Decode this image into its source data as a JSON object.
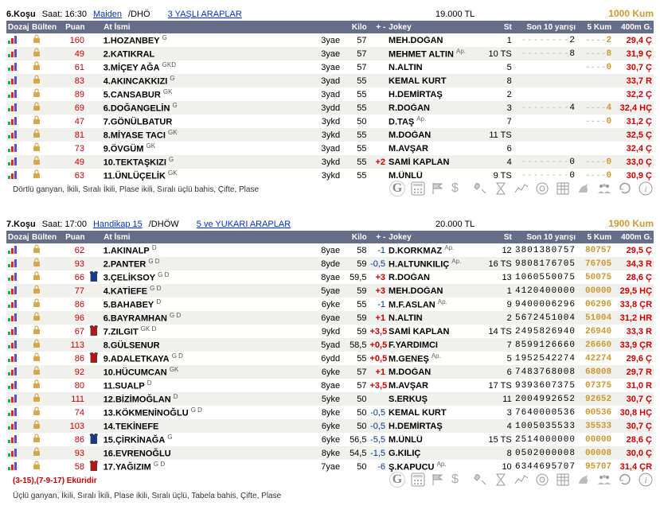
{
  "races": [
    {
      "no": "6.Koşu",
      "time": "Saat: 16:30",
      "type": "Maiden",
      "cond": "/DHÖ",
      "age": "3 YAŞLI ARAPLAR",
      "prize": "19.000 TL",
      "dist": "1000 Kum",
      "footer_red": "",
      "footer_txt": "Dörtlü ganyan, İkili, Sıralı İkili, Plase ikili, Sıralı üçlü bahis, Çifte, Plase",
      "headers": [
        "Dozaj",
        "Bülten",
        "Puan",
        "",
        "At İsmi",
        "",
        "Kilo",
        "+ -",
        "Jokey",
        "St",
        "Son 10 yarışı",
        "5 Kum",
        "400m G."
      ],
      "rows": [
        {
          "puan": "160",
          "no": "1",
          "name": "HOZANBEY",
          "sup": "G",
          "yas": "3yae",
          "kilo": "57",
          "pm": "",
          "jok": "MEH.DOĞAN",
          "ap": "",
          "st": "1",
          "form": "--------2",
          "k5": "----2",
          "t": "29,4 Ç",
          "tc": "#cc0000",
          "silk": ""
        },
        {
          "puan": "49",
          "no": "2",
          "name": "KATIKRAL",
          "sup": "",
          "yas": "3yae",
          "kilo": "57",
          "pm": "",
          "jok": "MEHMET ALTIN",
          "ap": "Ap.",
          "st": "10 TS",
          "form": "--------8",
          "k5": "----8",
          "t": "31,9 Ç",
          "tc": "#cc0000",
          "silk": ""
        },
        {
          "puan": "61",
          "no": "3",
          "name": "MİÇEY AĞA",
          "sup": "GKD",
          "yas": "3yae",
          "kilo": "57",
          "pm": "",
          "jok": "N.ALTIN",
          "ap": "",
          "st": "5",
          "form": "",
          "k5": "----0",
          "t": "30,7 Ç",
          "tc": "#cc0000",
          "silk": ""
        },
        {
          "puan": "83",
          "no": "4",
          "name": "AKINCAKKIZI",
          "sup": "G",
          "yas": "3yad",
          "kilo": "55",
          "pm": "",
          "jok": "KEMAL KURT",
          "ap": "",
          "st": "8",
          "form": "",
          "k5": "",
          "t": "33,7 R",
          "tc": "#cc0000",
          "silk": ""
        },
        {
          "puan": "89",
          "no": "5",
          "name": "CANSABUR",
          "sup": "GK",
          "yas": "3yad",
          "kilo": "55",
          "pm": "",
          "jok": "H.DEMİRTAŞ",
          "ap": "",
          "st": "2",
          "form": "",
          "k5": "",
          "t": "32,2 Ç",
          "tc": "#cc0000",
          "silk": ""
        },
        {
          "puan": "69",
          "no": "6",
          "name": "DOĞANGELİN",
          "sup": "G",
          "yas": "3ydd",
          "kilo": "55",
          "pm": "",
          "jok": "R.DOĞAN",
          "ap": "",
          "st": "3",
          "form": "--------4",
          "k5": "----4",
          "t": "32,4 HÇ",
          "tc": "#cc0000",
          "silk": ""
        },
        {
          "puan": "47",
          "no": "7",
          "name": "GÖNÜLBATUR",
          "sup": "",
          "yas": "3ykd",
          "kilo": "50",
          "pm": "",
          "jok": "D.TAŞ",
          "ap": "Ap.",
          "st": "7",
          "form": "",
          "k5": "----0",
          "t": "31,2 Ç",
          "tc": "#cc0000",
          "silk": ""
        },
        {
          "puan": "81",
          "no": "8",
          "name": "MİYASE TACI",
          "sup": "GK",
          "yas": "3ykd",
          "kilo": "55",
          "pm": "",
          "jok": "M.DOĞAN",
          "ap": "",
          "st": "11 TS",
          "form": "",
          "k5": "",
          "t": "32,5 Ç",
          "tc": "#cc0000",
          "silk": ""
        },
        {
          "puan": "73",
          "no": "9",
          "name": "ÖVGÜM",
          "sup": "GK",
          "yas": "3yad",
          "kilo": "55",
          "pm": "",
          "jok": "M.AVŞAR",
          "ap": "",
          "st": "6",
          "form": "",
          "k5": "",
          "t": "32,4 Ç",
          "tc": "#cc0000",
          "silk": ""
        },
        {
          "puan": "49",
          "no": "10",
          "name": "TEKTAŞKIZI",
          "sup": "G",
          "yas": "3ykd",
          "kilo": "55",
          "pm": "+2",
          "jok": "SAMİ KAPLAN",
          "ap": "",
          "st": "4",
          "form": "--------0",
          "k5": "----0",
          "t": "33,0 Ç",
          "tc": "#cc0000",
          "silk": ""
        },
        {
          "puan": "63",
          "no": "11",
          "name": "ÜNLÜÇELİK",
          "sup": "GK",
          "yas": "3ykd",
          "kilo": "55",
          "pm": "",
          "jok": "M.ÜNLÜ",
          "ap": "",
          "st": "9 TS",
          "form": "--------0",
          "k5": "----0",
          "t": "30,9 Ç",
          "tc": "#cc0000",
          "silk": ""
        }
      ]
    },
    {
      "no": "7.Koşu",
      "time": "Saat: 17:00",
      "type": "Handikap 15",
      "cond": "/DHÖW",
      "age": "5 ve YUKARI ARAPLAR",
      "prize": "20.000 TL",
      "dist": "1900 Kum",
      "footer_red": "(3-15),(7-9-17) Eküridir",
      "footer_txt": "Üçlü ganyan, İkili, Sıralı İkili, Plase ikili, Sıralı üçlü, Tabela bahis, Çifte, Plase",
      "headers": [
        "Dozaj",
        "Bülten",
        "Puan",
        "",
        "At İsmi",
        "",
        "Kilo",
        "+ -",
        "Jokey",
        "St",
        "Son 10 yarışı",
        "5 Kum",
        "400m G."
      ],
      "rows": [
        {
          "puan": "62",
          "no": "1",
          "name": "AKINALP",
          "sup": "D",
          "yas": "8yae",
          "kilo": "58",
          "pm": "-1",
          "jok": "D.KORKMAZ",
          "ap": "Ap.",
          "st": "12",
          "form": "3801380757",
          "k5": "80757",
          "t": "29,5 Ç",
          "tc": "#cc0000",
          "silk": ""
        },
        {
          "puan": "93",
          "no": "2",
          "name": "PANTER",
          "sup": "G D",
          "yas": "8yde",
          "kilo": "59",
          "pm": "-0,5",
          "jok": "H.ALTUNKILIÇ",
          "ap": "Ap.",
          "st": "16 TS",
          "form": "9808176705",
          "k5": "76705",
          "t": "34,3 R",
          "tc": "#cc0000",
          "silk": ""
        },
        {
          "puan": "66",
          "no": "3",
          "name": "ÇELİKSOY",
          "sup": "G D",
          "yas": "8yae",
          "kilo": "59,5",
          "pm": "+3",
          "jok": "R.DOĞAN",
          "ap": "",
          "st": "13",
          "form": "1060550075",
          "k5": "50075",
          "t": "28,6 Ç",
          "tc": "#cc0000",
          "silk": "blue"
        },
        {
          "puan": "77",
          "no": "4",
          "name": "KATİEFE",
          "sup": "G D",
          "yas": "5yae",
          "kilo": "59",
          "pm": "+3",
          "jok": "MEH.DOĞAN",
          "ap": "",
          "st": "1",
          "form": "4120400000",
          "k5": "00000",
          "t": "29,5 HÇ",
          "tc": "#cc0000",
          "silk": ""
        },
        {
          "puan": "86",
          "no": "5",
          "name": "BAHABEY",
          "sup": "D",
          "yas": "6yke",
          "kilo": "55",
          "pm": "-1",
          "jok": "M.F.ASLAN",
          "ap": "Ap.",
          "st": "9",
          "form": "9400006296",
          "k5": "06296",
          "t": "33,8 ÇR",
          "tc": "#cc0000",
          "silk": ""
        },
        {
          "puan": "96",
          "no": "6",
          "name": "BAYRAMHAN",
          "sup": "G D",
          "yas": "6yae",
          "kilo": "59",
          "pm": "+1",
          "jok": "N.ALTIN",
          "ap": "",
          "st": "2",
          "form": "5672451004",
          "k5": "51004",
          "t": "31,2 HR",
          "tc": "#cc0000",
          "silk": ""
        },
        {
          "puan": "67",
          "no": "7",
          "name": "ZILGIT",
          "sup": "GK D",
          "yas": "9ykd",
          "kilo": "59",
          "pm": "+3,5",
          "jok": "SAMİ KAPLAN",
          "ap": "",
          "st": "14 TS",
          "form": "2495826940",
          "k5": "26940",
          "t": "33,3 R",
          "tc": "#cc0000",
          "silk": "red"
        },
        {
          "puan": "113",
          "no": "8",
          "name": "GÜLSENUR",
          "sup": "",
          "yas": "5yad",
          "kilo": "58,5",
          "pm": "+0,5",
          "jok": "F.YARDIMCI",
          "ap": "",
          "st": "7",
          "form": "8599126660",
          "k5": "26660",
          "t": "33,9 ÇR",
          "tc": "#cc0000",
          "silk": ""
        },
        {
          "puan": "86",
          "no": "9",
          "name": "ADALETKAYA",
          "sup": "G D",
          "yas": "6ydd",
          "kilo": "55",
          "pm": "+0,5",
          "jok": "M.GENEŞ",
          "ap": "Ap.",
          "st": "5",
          "form": "1952542274",
          "k5": "42274",
          "t": "29,6 Ç",
          "tc": "#cc0000",
          "silk": "red"
        },
        {
          "puan": "92",
          "no": "10",
          "name": "HÜCUMCAN",
          "sup": "GK",
          "yas": "6yke",
          "kilo": "57",
          "pm": "+1",
          "jok": "M.DOĞAN",
          "ap": "",
          "st": "6",
          "form": "7483768008",
          "k5": "68008",
          "t": "29,7 R",
          "tc": "#cc0000",
          "silk": ""
        },
        {
          "puan": "80",
          "no": "11",
          "name": "SUALP",
          "sup": "D",
          "yas": "8yae",
          "kilo": "57",
          "pm": "+3,5",
          "jok": "M.AVŞAR",
          "ap": "",
          "st": "17 TS",
          "form": "9393607375",
          "k5": "07375",
          "t": "31,0 R",
          "tc": "#cc0000",
          "silk": ""
        },
        {
          "puan": "111",
          "no": "12",
          "name": "BİZİMOĞLAN",
          "sup": "D",
          "yas": "5yke",
          "kilo": "50",
          "pm": "",
          "jok": "S.ERKUŞ",
          "ap": "",
          "st": "11",
          "form": "2004992652",
          "k5": "92652",
          "t": "30,7 Ç",
          "tc": "#cc0000",
          "silk": ""
        },
        {
          "puan": "74",
          "no": "13",
          "name": "KÖKMENİNOĞLU",
          "sup": "G D",
          "yas": "8yke",
          "kilo": "50",
          "pm": "-0,5",
          "jok": "KEMAL KURT",
          "ap": "",
          "st": "3",
          "form": "7640000536",
          "k5": "00536",
          "t": "30,8 HÇ",
          "tc": "#cc0000",
          "silk": ""
        },
        {
          "puan": "103",
          "no": "14",
          "name": "TEKİNEFE",
          "sup": "",
          "yas": "6yke",
          "kilo": "50",
          "pm": "-0,5",
          "jok": "H.DEMİRTAŞ",
          "ap": "",
          "st": "4",
          "form": "1005035533",
          "k5": "35533",
          "t": "30,7 Ç",
          "tc": "#cc0000",
          "silk": ""
        },
        {
          "puan": "86",
          "no": "15",
          "name": "ÇİRKİNAĞA",
          "sup": "G",
          "yas": "6yke",
          "kilo": "56,5",
          "pm": "-5,5",
          "jok": "M.ÜNLÜ",
          "ap": "",
          "st": "15 TS",
          "form": "2514000000",
          "k5": "00000",
          "t": "28,6 Ç",
          "tc": "#cc0000",
          "silk": "blue"
        },
        {
          "puan": "93",
          "no": "16",
          "name": "EVRENOĞLU",
          "sup": "",
          "yas": "8yke",
          "kilo": "54,5",
          "pm": "-1,5",
          "jok": "G.KILIÇ",
          "ap": "",
          "st": "8",
          "form": "0502000008",
          "k5": "00008",
          "t": "30,0 Ç",
          "tc": "#cc0000",
          "silk": ""
        },
        {
          "puan": "58",
          "no": "17",
          "name": "YAĞIZIM",
          "sup": "G D",
          "yas": "7yae",
          "kilo": "50",
          "pm": "-6",
          "jok": "Ş.KAPUCU",
          "ap": "Ap.",
          "st": "10",
          "form": "6344695707",
          "k5": "95707",
          "t": "31,4 ÇR",
          "tc": "#cc0000",
          "silk": "red"
        }
      ]
    }
  ]
}
